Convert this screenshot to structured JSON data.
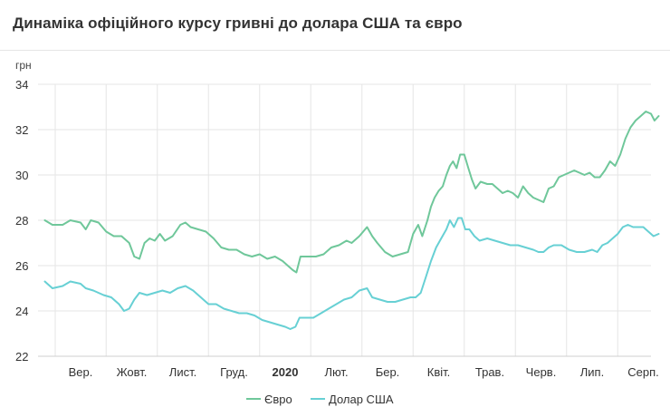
{
  "title": "Динаміка офіційного курсу гривні до долара США та євро",
  "chart_data": {
    "type": "line",
    "ylabel": "грн",
    "ylim": [
      22,
      34
    ],
    "yticks": [
      22,
      24,
      26,
      28,
      30,
      32,
      34
    ],
    "grid": true,
    "legend_position": "bottom",
    "x_categories": [
      {
        "label": "Вер.",
        "bold": false
      },
      {
        "label": "Жовт.",
        "bold": false
      },
      {
        "label": "Лист.",
        "bold": false
      },
      {
        "label": "Груд.",
        "bold": false
      },
      {
        "label": "2020",
        "bold": true
      },
      {
        "label": "Лют.",
        "bold": false
      },
      {
        "label": "Бер.",
        "bold": false
      },
      {
        "label": "Квіт.",
        "bold": false
      },
      {
        "label": "Трав.",
        "bold": false
      },
      {
        "label": "Черв.",
        "bold": false
      },
      {
        "label": "Лип.",
        "bold": false
      },
      {
        "label": "Серп.",
        "bold": false
      }
    ],
    "x_start_offset_months": -0.7,
    "x_end_offset_months": 11.3,
    "series": [
      {
        "name": "Євро",
        "color": "#6fc79a",
        "points": [
          [
            -0.7,
            28.0
          ],
          [
            -0.55,
            27.8
          ],
          [
            -0.35,
            27.8
          ],
          [
            -0.2,
            28.0
          ],
          [
            0.0,
            27.9
          ],
          [
            0.1,
            27.6
          ],
          [
            0.2,
            28.0
          ],
          [
            0.35,
            27.9
          ],
          [
            0.5,
            27.5
          ],
          [
            0.65,
            27.3
          ],
          [
            0.8,
            27.3
          ],
          [
            0.95,
            27.0
          ],
          [
            1.05,
            26.4
          ],
          [
            1.15,
            26.3
          ],
          [
            1.25,
            27.0
          ],
          [
            1.35,
            27.2
          ],
          [
            1.45,
            27.1
          ],
          [
            1.55,
            27.4
          ],
          [
            1.65,
            27.1
          ],
          [
            1.8,
            27.3
          ],
          [
            1.95,
            27.8
          ],
          [
            2.05,
            27.9
          ],
          [
            2.15,
            27.7
          ],
          [
            2.3,
            27.6
          ],
          [
            2.45,
            27.5
          ],
          [
            2.6,
            27.2
          ],
          [
            2.75,
            26.8
          ],
          [
            2.9,
            26.7
          ],
          [
            3.05,
            26.7
          ],
          [
            3.2,
            26.5
          ],
          [
            3.35,
            26.4
          ],
          [
            3.5,
            26.5
          ],
          [
            3.65,
            26.3
          ],
          [
            3.8,
            26.4
          ],
          [
            3.95,
            26.2
          ],
          [
            4.05,
            26.0
          ],
          [
            4.15,
            25.8
          ],
          [
            4.22,
            25.7
          ],
          [
            4.3,
            26.4
          ],
          [
            4.45,
            26.4
          ],
          [
            4.6,
            26.4
          ],
          [
            4.75,
            26.5
          ],
          [
            4.9,
            26.8
          ],
          [
            5.05,
            26.9
          ],
          [
            5.2,
            27.1
          ],
          [
            5.3,
            27.0
          ],
          [
            5.45,
            27.3
          ],
          [
            5.6,
            27.7
          ],
          [
            5.7,
            27.3
          ],
          [
            5.8,
            27.0
          ],
          [
            5.95,
            26.6
          ],
          [
            6.1,
            26.4
          ],
          [
            6.25,
            26.5
          ],
          [
            6.4,
            26.6
          ],
          [
            6.5,
            27.4
          ],
          [
            6.6,
            27.8
          ],
          [
            6.68,
            27.3
          ],
          [
            6.78,
            28.0
          ],
          [
            6.85,
            28.6
          ],
          [
            6.92,
            29.0
          ],
          [
            7.0,
            29.3
          ],
          [
            7.08,
            29.5
          ],
          [
            7.15,
            30.0
          ],
          [
            7.22,
            30.4
          ],
          [
            7.28,
            30.6
          ],
          [
            7.35,
            30.3
          ],
          [
            7.42,
            30.9
          ],
          [
            7.5,
            30.9
          ],
          [
            7.58,
            30.3
          ],
          [
            7.65,
            29.8
          ],
          [
            7.72,
            29.4
          ],
          [
            7.82,
            29.7
          ],
          [
            7.95,
            29.6
          ],
          [
            8.05,
            29.6
          ],
          [
            8.15,
            29.4
          ],
          [
            8.25,
            29.2
          ],
          [
            8.35,
            29.3
          ],
          [
            8.45,
            29.2
          ],
          [
            8.55,
            29.0
          ],
          [
            8.65,
            29.5
          ],
          [
            8.75,
            29.2
          ],
          [
            8.85,
            29.0
          ],
          [
            8.95,
            28.9
          ],
          [
            9.05,
            28.8
          ],
          [
            9.15,
            29.4
          ],
          [
            9.25,
            29.5
          ],
          [
            9.35,
            29.9
          ],
          [
            9.45,
            30.0
          ],
          [
            9.55,
            30.1
          ],
          [
            9.65,
            30.2
          ],
          [
            9.75,
            30.1
          ],
          [
            9.85,
            30.0
          ],
          [
            9.95,
            30.1
          ],
          [
            10.05,
            29.9
          ],
          [
            10.15,
            29.9
          ],
          [
            10.25,
            30.2
          ],
          [
            10.35,
            30.6
          ],
          [
            10.45,
            30.4
          ],
          [
            10.55,
            30.9
          ],
          [
            10.65,
            31.6
          ],
          [
            10.75,
            32.1
          ],
          [
            10.85,
            32.4
          ],
          [
            10.95,
            32.6
          ],
          [
            11.05,
            32.8
          ],
          [
            11.15,
            32.7
          ],
          [
            11.22,
            32.4
          ],
          [
            11.3,
            32.6
          ]
        ]
      },
      {
        "name": "Долар США",
        "color": "#67d0d4",
        "points": [
          [
            -0.7,
            25.3
          ],
          [
            -0.55,
            25.0
          ],
          [
            -0.35,
            25.1
          ],
          [
            -0.2,
            25.3
          ],
          [
            0.0,
            25.2
          ],
          [
            0.1,
            25.0
          ],
          [
            0.25,
            24.9
          ],
          [
            0.45,
            24.7
          ],
          [
            0.6,
            24.6
          ],
          [
            0.75,
            24.3
          ],
          [
            0.85,
            24.0
          ],
          [
            0.95,
            24.1
          ],
          [
            1.05,
            24.5
          ],
          [
            1.15,
            24.8
          ],
          [
            1.3,
            24.7
          ],
          [
            1.45,
            24.8
          ],
          [
            1.6,
            24.9
          ],
          [
            1.75,
            24.8
          ],
          [
            1.9,
            25.0
          ],
          [
            2.05,
            25.1
          ],
          [
            2.2,
            24.9
          ],
          [
            2.35,
            24.6
          ],
          [
            2.5,
            24.3
          ],
          [
            2.65,
            24.3
          ],
          [
            2.8,
            24.1
          ],
          [
            2.95,
            24.0
          ],
          [
            3.1,
            23.9
          ],
          [
            3.25,
            23.9
          ],
          [
            3.4,
            23.8
          ],
          [
            3.55,
            23.6
          ],
          [
            3.7,
            23.5
          ],
          [
            3.85,
            23.4
          ],
          [
            4.0,
            23.3
          ],
          [
            4.1,
            23.2
          ],
          [
            4.2,
            23.3
          ],
          [
            4.28,
            23.7
          ],
          [
            4.4,
            23.7
          ],
          [
            4.55,
            23.7
          ],
          [
            4.7,
            23.9
          ],
          [
            4.85,
            24.1
          ],
          [
            5.0,
            24.3
          ],
          [
            5.15,
            24.5
          ],
          [
            5.3,
            24.6
          ],
          [
            5.45,
            24.9
          ],
          [
            5.6,
            25.0
          ],
          [
            5.7,
            24.6
          ],
          [
            5.85,
            24.5
          ],
          [
            6.0,
            24.4
          ],
          [
            6.15,
            24.4
          ],
          [
            6.3,
            24.5
          ],
          [
            6.45,
            24.6
          ],
          [
            6.55,
            24.6
          ],
          [
            6.65,
            24.8
          ],
          [
            6.75,
            25.5
          ],
          [
            6.85,
            26.2
          ],
          [
            6.95,
            26.8
          ],
          [
            7.05,
            27.2
          ],
          [
            7.15,
            27.6
          ],
          [
            7.22,
            28.0
          ],
          [
            7.3,
            27.7
          ],
          [
            7.38,
            28.1
          ],
          [
            7.45,
            28.1
          ],
          [
            7.52,
            27.6
          ],
          [
            7.6,
            27.6
          ],
          [
            7.7,
            27.3
          ],
          [
            7.8,
            27.1
          ],
          [
            7.95,
            27.2
          ],
          [
            8.1,
            27.1
          ],
          [
            8.25,
            27.0
          ],
          [
            8.4,
            26.9
          ],
          [
            8.55,
            26.9
          ],
          [
            8.7,
            26.8
          ],
          [
            8.85,
            26.7
          ],
          [
            8.95,
            26.6
          ],
          [
            9.05,
            26.6
          ],
          [
            9.15,
            26.8
          ],
          [
            9.25,
            26.9
          ],
          [
            9.4,
            26.9
          ],
          [
            9.55,
            26.7
          ],
          [
            9.7,
            26.6
          ],
          [
            9.85,
            26.6
          ],
          [
            10.0,
            26.7
          ],
          [
            10.1,
            26.6
          ],
          [
            10.2,
            26.9
          ],
          [
            10.3,
            27.0
          ],
          [
            10.4,
            27.2
          ],
          [
            10.5,
            27.4
          ],
          [
            10.6,
            27.7
          ],
          [
            10.7,
            27.8
          ],
          [
            10.8,
            27.7
          ],
          [
            10.9,
            27.7
          ],
          [
            11.0,
            27.7
          ],
          [
            11.1,
            27.5
          ],
          [
            11.2,
            27.3
          ],
          [
            11.3,
            27.4
          ]
        ]
      }
    ]
  }
}
